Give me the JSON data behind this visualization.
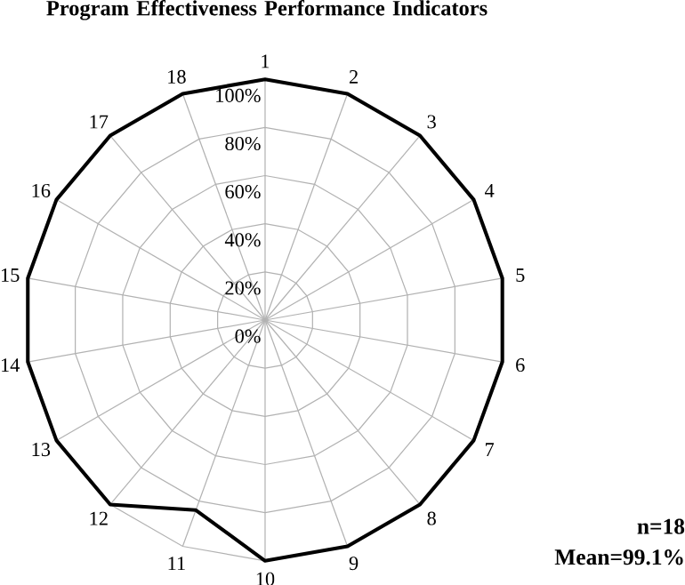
{
  "chart_data": {
    "type": "radar",
    "title": "Program Effectiveness Performance Indicators",
    "categories": [
      "1",
      "2",
      "3",
      "4",
      "5",
      "6",
      "7",
      "8",
      "9",
      "10",
      "11",
      "12",
      "13",
      "14",
      "15",
      "16",
      "17",
      "18"
    ],
    "series": [
      {
        "color": "#000000",
        "values": [
          100,
          100,
          100,
          100,
          100,
          100,
          100,
          100,
          100,
          100,
          84,
          100,
          100,
          100,
          100,
          100,
          100,
          100
        ]
      }
    ],
    "ylim": [
      0,
      100
    ],
    "yticks": [
      {
        "value": 0,
        "label": "0%"
      },
      {
        "value": 20,
        "label": "20%"
      },
      {
        "value": 40,
        "label": "40%"
      },
      {
        "value": 60,
        "label": "60%"
      },
      {
        "value": 80,
        "label": "80%"
      },
      {
        "value": 100,
        "label": "100%"
      }
    ],
    "grid": true,
    "annotations": [
      "n=18",
      "Mean=99.1%"
    ]
  }
}
